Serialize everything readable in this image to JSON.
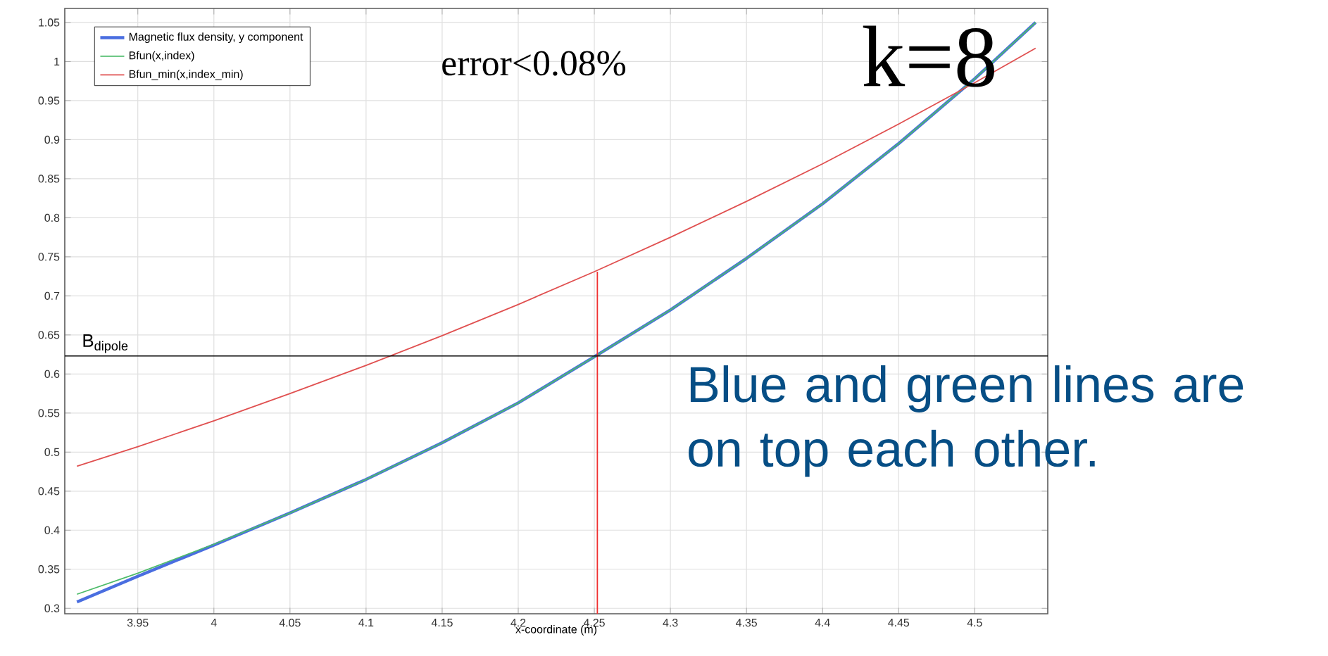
{
  "chart_data": {
    "type": "line",
    "xlabel": "x-coordinate (m)",
    "x": [
      3.91,
      3.95,
      4.0,
      4.05,
      4.1,
      4.15,
      4.2,
      4.25,
      4.3,
      4.35,
      4.4,
      4.45,
      4.5,
      4.54
    ],
    "series": [
      {
        "name": "Magnetic flux density, y component",
        "color": "#4a6ee0",
        "values": [
          0.308,
          0.341,
          0.381,
          0.422,
          0.465,
          0.512,
          0.563,
          0.622,
          0.682,
          0.748,
          0.818,
          0.895,
          0.978,
          1.05
        ]
      },
      {
        "name": "Bfun(x,index)",
        "color": "#4dbb6a",
        "values": [
          0.318,
          0.345,
          0.382,
          0.422,
          0.465,
          0.512,
          0.563,
          0.622,
          0.682,
          0.748,
          0.818,
          0.895,
          0.978,
          1.05
        ]
      },
      {
        "name": "Bfun_min(x,index_min)",
        "color": "#e05050",
        "values": [
          0.482,
          0.507,
          0.54,
          0.575,
          0.611,
          0.649,
          0.689,
          0.731,
          0.775,
          0.821,
          0.869,
          0.92,
          0.973,
          1.017
        ]
      },
      {
        "type": "line",
        "color": "#f03030",
        "x": [
          4.252,
          4.252
        ],
        "values": [
          0.293,
          0.731
        ]
      }
    ],
    "xlim": [
      3.902,
      4.548
    ],
    "ylim": [
      0.293,
      1.068
    ],
    "xticks": [
      3.95,
      4,
      4.05,
      4.1,
      4.15,
      4.2,
      4.25,
      4.3,
      4.35,
      4.4,
      4.45,
      4.5
    ],
    "yticks": [
      0.3,
      0.35,
      0.4,
      0.45,
      0.5,
      0.55,
      0.6,
      0.65,
      0.7,
      0.75,
      0.8,
      0.85,
      0.9,
      0.95,
      1,
      1.05
    ],
    "ref_lines": [
      {
        "axis": "y",
        "value": 0.623,
        "label": "B$_{dipole}$",
        "color": "#000000"
      }
    ],
    "annotations": [
      "error<0.08%",
      "k=8",
      "Blue and green lines are on top each other."
    ],
    "grid": true,
    "legend": "top left",
    "marker": "none",
    "line_style": "solid"
  }
}
